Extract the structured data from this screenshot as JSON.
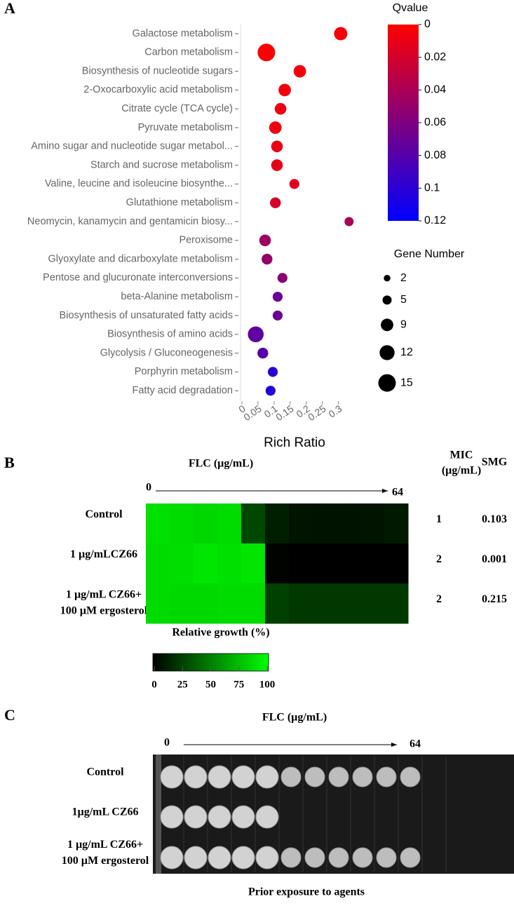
{
  "chart_data": [
    {
      "type": "bubble",
      "panel_label": "A",
      "categories": [
        "Galactose metabolism",
        "Carbon metabolism",
        "Biosynthesis of nucleotide sugars",
        "2-Oxocarboxylic acid metabolism",
        "Citrate cycle (TCA cycle)",
        "Pyruvate metabolism",
        "Amino sugar and nucleotide sugar metabol...",
        "Starch and sucrose metabolism",
        "Valine, leucine and isoleucine biosynthe...",
        "Glutathione metabolism",
        "Neomycin, kanamycin and gentamicin biosy...",
        "Peroxisome",
        "Glyoxylate and dicarboxylate metabolism",
        "Pentose and glucuronate interconversions",
        "beta-Alanine metabolism",
        "Biosynthesis of unsaturated fatty acids",
        "Biosynthesis of amino acids",
        "Glycolysis / Gluconeogenesis",
        "Porphyrin metabolism",
        "Fatty acid degradation"
      ],
      "x": [
        0.307,
        0.076,
        0.18,
        0.133,
        0.12,
        0.104,
        0.109,
        0.109,
        0.163,
        0.104,
        0.333,
        0.072,
        0.078,
        0.126,
        0.111,
        0.111,
        0.043,
        0.065,
        0.096,
        0.089
      ],
      "qvalue": [
        0.004,
        0.002,
        0.005,
        0.006,
        0.007,
        0.008,
        0.01,
        0.011,
        0.014,
        0.02,
        0.04,
        0.045,
        0.05,
        0.055,
        0.07,
        0.07,
        0.075,
        0.08,
        0.1,
        0.105
      ],
      "gene_number": [
        10,
        15,
        9,
        9,
        8,
        9,
        8,
        8,
        6,
        7,
        5,
        8,
        7,
        6,
        6,
        6,
        13,
        7,
        6,
        6
      ],
      "xlabel": "Rich Ratio",
      "xlim": [
        0,
        0.34
      ],
      "xticks": [
        0,
        0.05,
        0.1,
        0.15,
        0.2,
        0.25,
        0.3
      ],
      "colorbar": {
        "title": "Qvalue",
        "lim": [
          0,
          0.12
        ],
        "ticks": [
          0,
          0.02,
          0.04,
          0.06,
          0.08,
          0.1,
          0.12
        ],
        "colors": [
          "#ff0000",
          "#0000ff"
        ]
      },
      "size_legend": {
        "title": "Gene Number",
        "values": [
          2,
          5,
          9,
          12,
          15
        ]
      }
    },
    {
      "type": "heatmap",
      "panel_label": "B",
      "title": "FLC (µg/mL)",
      "x_start": 0,
      "x_end": 64,
      "rows": [
        [
          "Control"
        ],
        [
          "1 µg/mLCZ66"
        ],
        [
          "1 µg/mL CZ66+",
          "100 µM ergosterol"
        ]
      ],
      "values": [
        [
          88,
          86,
          84,
          86,
          28,
          12,
          8,
          7,
          7,
          8,
          10
        ],
        [
          86,
          87,
          90,
          88,
          90,
          1,
          0,
          0,
          0,
          0,
          0
        ],
        [
          86,
          85,
          85,
          86,
          86,
          25,
          22,
          22,
          22,
          22,
          22
        ]
      ],
      "colormap": [
        "#000000",
        "#00ff00"
      ],
      "colorbar": {
        "title": "Relative growth (%)",
        "lim": [
          0,
          100
        ],
        "ticks": [
          0,
          25,
          50,
          75,
          100
        ]
      },
      "table": {
        "columns": [
          [
            "MIC",
            "(µg/mL)"
          ],
          [
            "SMG"
          ]
        ],
        "rows": [
          [
            1,
            0.103
          ],
          [
            2,
            0.001
          ],
          [
            2,
            0.215
          ]
        ]
      }
    }
  ],
  "panel_c": {
    "panel_label": "C",
    "title": "FLC (µg/mL)",
    "x_start": 0,
    "x_end": 64,
    "rows": [
      [
        "Control"
      ],
      [
        "1µg/mL CZ66"
      ],
      [
        "1 µg/mL CZ66+",
        "100 µM ergosterol"
      ]
    ],
    "caption": "Prior exposure to agents"
  }
}
